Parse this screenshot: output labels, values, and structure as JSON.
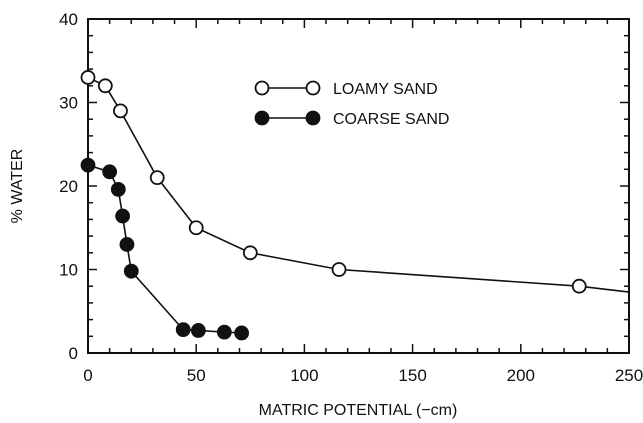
{
  "chart_data": {
    "type": "line",
    "title": "",
    "xlabel": "MATRIC POTENTIAL (−cm)",
    "ylabel": "% WATER",
    "xlim": [
      0,
      250
    ],
    "ylim": [
      0,
      40
    ],
    "x_ticks": [
      0,
      50,
      100,
      150,
      200,
      250
    ],
    "y_ticks": [
      0,
      10,
      20,
      30,
      40
    ],
    "grid": false,
    "legend_position": "top-center",
    "series": [
      {
        "name": "LOAMY SAND",
        "marker": "open-circle",
        "color": "#111111",
        "x": [
          0,
          8,
          15,
          32,
          50,
          75,
          116,
          227,
          250
        ],
        "y": [
          33,
          32,
          29,
          21,
          15,
          12,
          10,
          8,
          7.3
        ],
        "marker_flags": [
          true,
          true,
          true,
          true,
          true,
          true,
          true,
          true,
          false
        ]
      },
      {
        "name": "COARSE SAND",
        "marker": "filled-circle",
        "color": "#111111",
        "x": [
          0,
          10,
          14,
          16,
          18,
          20,
          44,
          51,
          63,
          71
        ],
        "y": [
          22.5,
          21.7,
          19.6,
          16.4,
          13,
          9.8,
          2.8,
          2.7,
          2.5,
          2.4
        ],
        "marker_flags": [
          true,
          true,
          true,
          true,
          true,
          true,
          true,
          true,
          true,
          true
        ]
      }
    ]
  }
}
